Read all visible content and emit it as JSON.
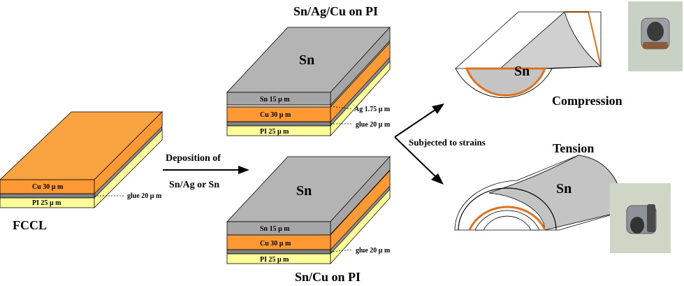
{
  "titles": {
    "top": "Sn/Ag/Cu on PI",
    "bottom": "Sn/Cu on PI",
    "fccl": "FCCL",
    "compression": "Compression",
    "tension": "Tension"
  },
  "arrows": {
    "deposition_line1": "Deposition of",
    "deposition_line2": "Sn/Ag or Sn",
    "strains": "Subjected to strains"
  },
  "sn_label": "Sn",
  "fccl_layers": {
    "cu": "Cu   30 μ m",
    "pi": "PI   25 μ m",
    "glue": "glue 20 μ m"
  },
  "top_stack_layers": {
    "sn": "Sn   15 μ m",
    "cu": "Cu   30 μ m",
    "pi": "PI   25 μ m",
    "ag": "Ag 1.75 μ m",
    "glue": "glue 20 μ m"
  },
  "bottom_stack_layers": {
    "sn": "Sn   15 μ m",
    "cu": "Cu   30 μ m",
    "pi": "PI   25 μ m",
    "glue": "glue 20 μ m"
  },
  "colors": {
    "sn": "#a6a6a6",
    "sn_top": "#b4b4b4",
    "cu": "#ff9933",
    "pi": "#ffff99",
    "glue": "#808080",
    "copper_rim": "#e0701c"
  }
}
